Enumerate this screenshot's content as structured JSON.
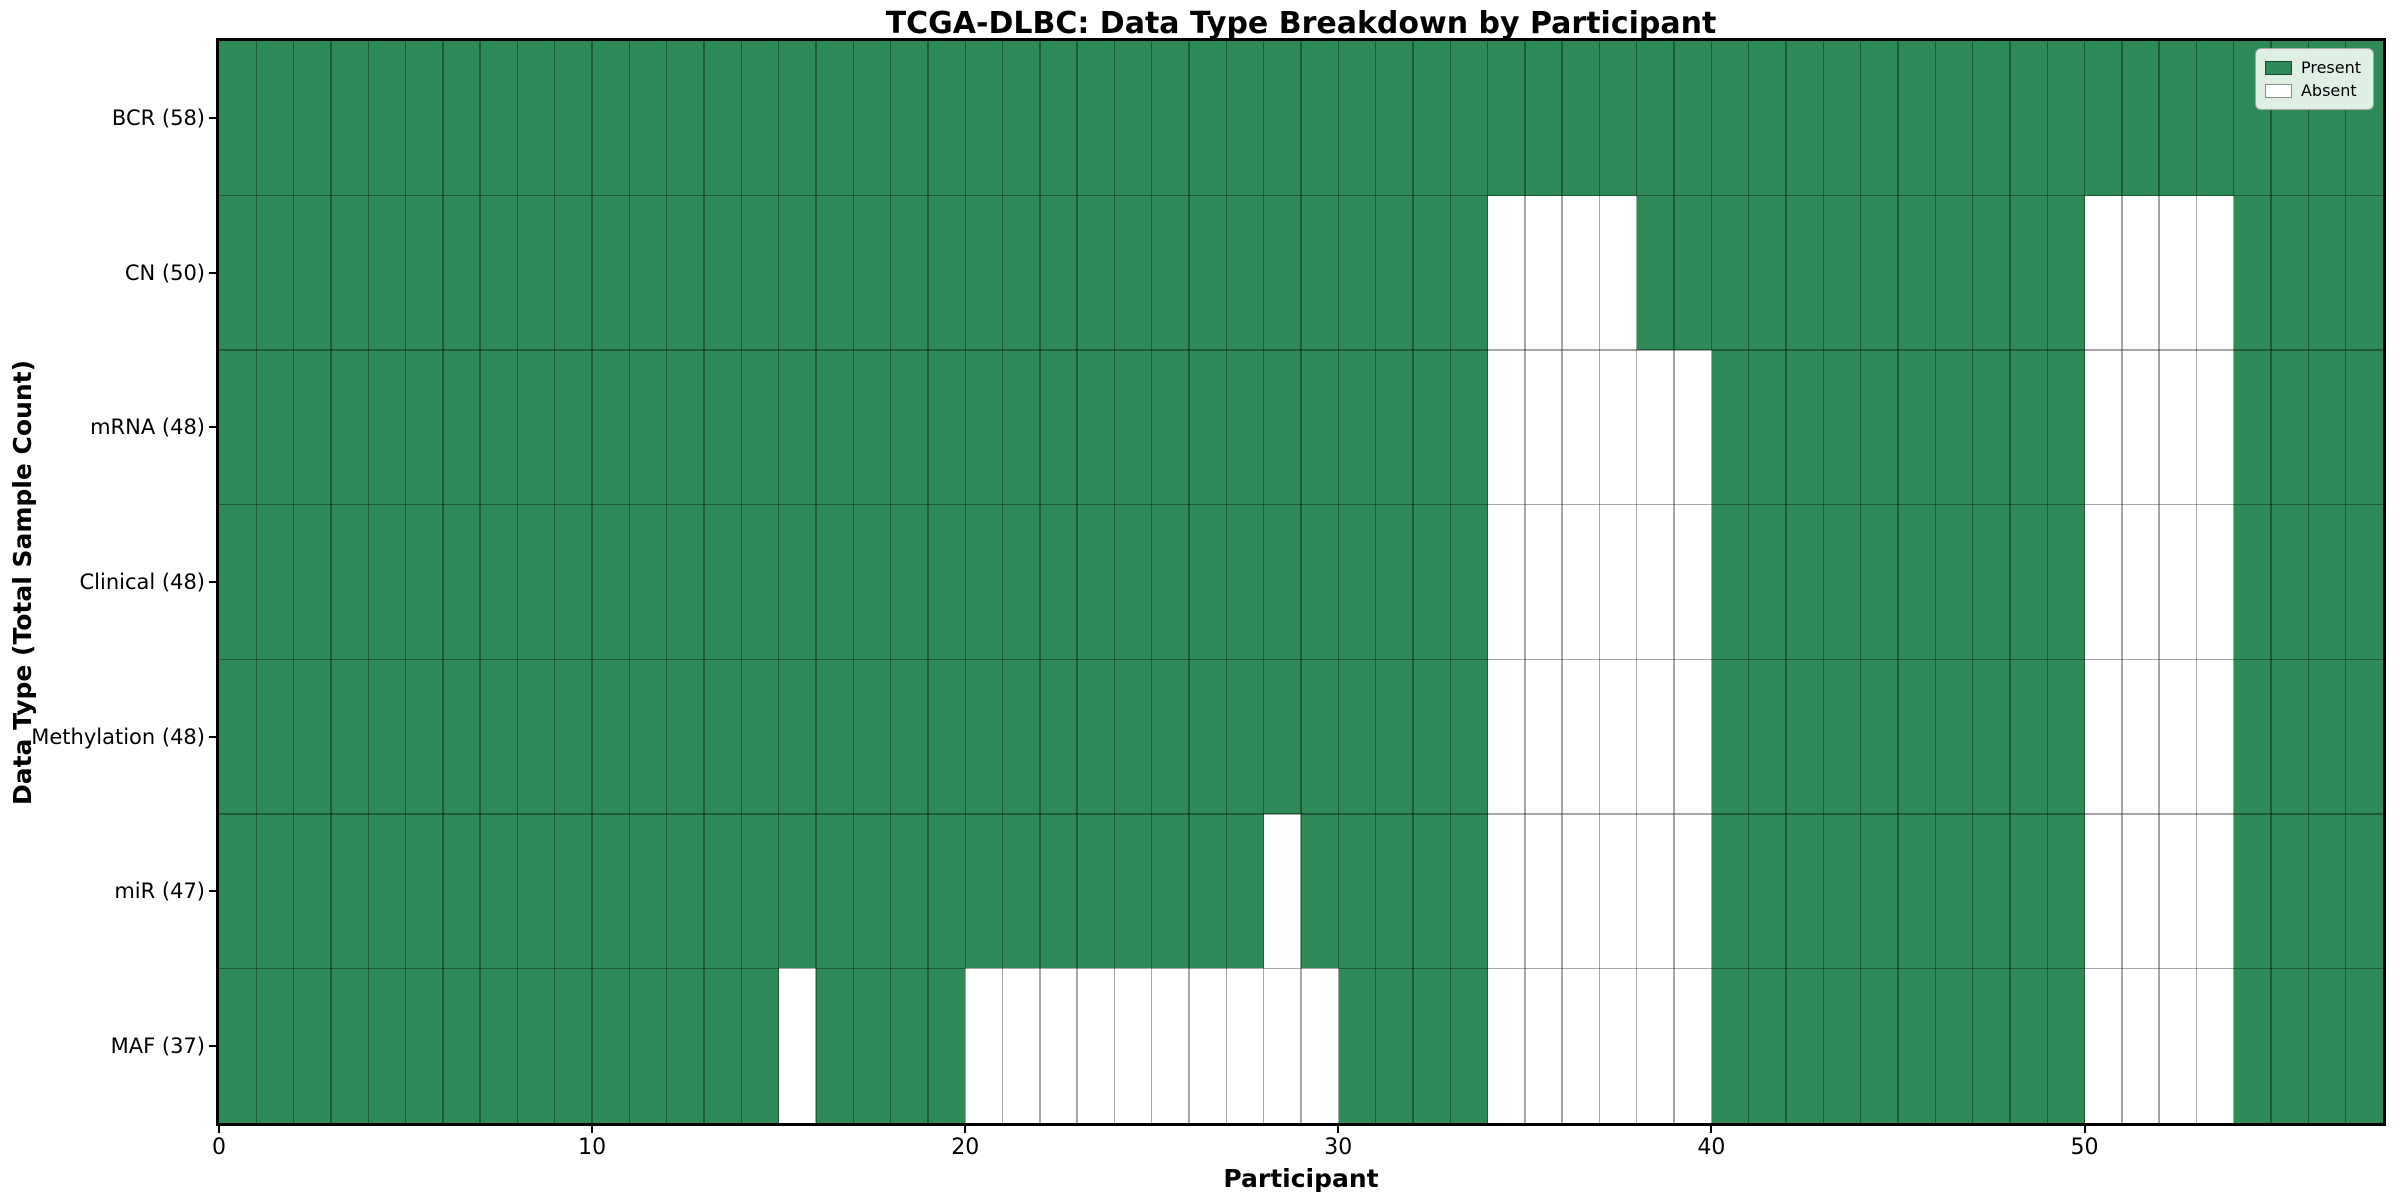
{
  "title": "TCGA-DLBC: Data Type Breakdown by Participant",
  "xlabel": "Participant",
  "ylabel": "Data Type (Total Sample Count)",
  "legend": {
    "present_label": "Present",
    "absent_label": "Absent"
  },
  "colors": {
    "present": "#2E8B57",
    "absent": "#FFFFFF",
    "grid": "rgba(0,0,0,0.35)",
    "legend_bg": "rgba(240,247,240,0.92)"
  },
  "chart_data": {
    "type": "heatmap",
    "title": "TCGA-DLBC: Data Type Breakdown by Participant",
    "xlabel": "Participant",
    "ylabel": "Data Type (Total Sample Count)",
    "n_participants": 58,
    "x_ticks": [
      0,
      10,
      20,
      30,
      40,
      50
    ],
    "legend_entries": [
      "Present",
      "Absent"
    ],
    "value_encoding": "1 = Present (green), 0 = Absent (white)",
    "rows": [
      {
        "label": "BCR (58)",
        "data_type": "BCR",
        "present_count": 58,
        "absent_participants": []
      },
      {
        "label": "CN (50)",
        "data_type": "CN",
        "present_count": 50,
        "absent_participants": [
          34,
          35,
          36,
          37,
          50,
          51,
          52,
          53
        ]
      },
      {
        "label": "mRNA (48)",
        "data_type": "mRNA",
        "present_count": 48,
        "absent_participants": [
          34,
          35,
          36,
          37,
          38,
          39,
          50,
          51,
          52,
          53
        ]
      },
      {
        "label": "Clinical (48)",
        "data_type": "Clinical",
        "present_count": 48,
        "absent_participants": [
          34,
          35,
          36,
          37,
          38,
          39,
          50,
          51,
          52,
          53
        ]
      },
      {
        "label": "Methylation (48)",
        "data_type": "Methylation",
        "present_count": 48,
        "absent_participants": [
          34,
          35,
          36,
          37,
          38,
          39,
          50,
          51,
          52,
          53
        ]
      },
      {
        "label": "miR (47)",
        "data_type": "miR",
        "present_count": 47,
        "absent_participants": [
          28,
          34,
          35,
          36,
          37,
          38,
          39,
          50,
          51,
          52,
          53
        ]
      },
      {
        "label": "MAF (37)",
        "data_type": "MAF",
        "present_count": 37,
        "absent_participants": [
          15,
          20,
          21,
          22,
          23,
          24,
          25,
          26,
          27,
          28,
          29,
          34,
          35,
          36,
          37,
          38,
          39,
          50,
          51,
          52,
          53
        ]
      }
    ]
  }
}
